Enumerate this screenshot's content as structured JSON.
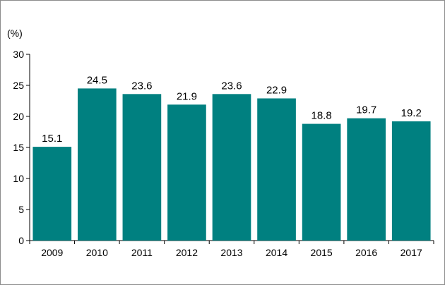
{
  "chart_data": {
    "type": "bar",
    "title": "",
    "unit_label": "(%)",
    "xlabel": "",
    "ylabel": "(%)",
    "ylim": [
      0,
      30
    ],
    "yticks": [
      0,
      5,
      10,
      15,
      20,
      25,
      30
    ],
    "grid": false,
    "categories": [
      "2009",
      "2010",
      "2011",
      "2012",
      "2013",
      "2014",
      "2015",
      "2016",
      "2017"
    ],
    "values": [
      15.1,
      24.5,
      23.6,
      21.9,
      23.6,
      22.9,
      18.8,
      19.7,
      19.2
    ],
    "data_labels": [
      "15.1",
      "24.5",
      "23.6",
      "21.9",
      "23.6",
      "22.9",
      "18.8",
      "19.7",
      "19.2"
    ],
    "bar_color": "#008080"
  }
}
